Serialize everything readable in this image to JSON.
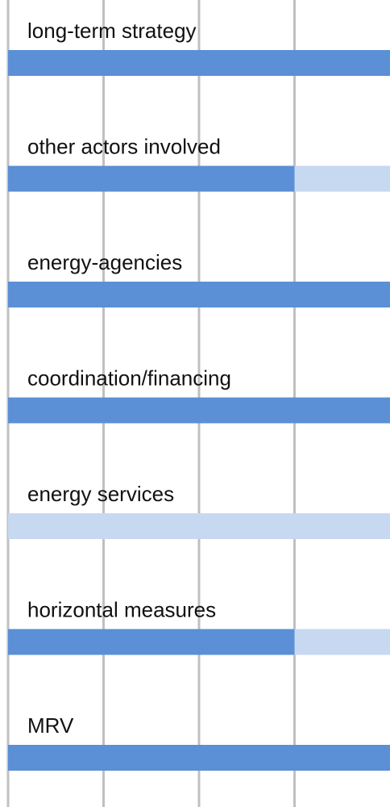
{
  "chart_data": {
    "type": "stacked_barh",
    "categories": [
      "long-term strategy",
      "other actors involved",
      "energy-agencies",
      "coordination/financing",
      "energy services",
      "horizontal measures",
      "MRV"
    ],
    "series": [
      {
        "color": "#5b8fd6",
        "values": [
          4,
          3,
          4,
          4,
          0,
          3,
          4
        ]
      },
      {
        "color": "#c6d9f1",
        "values": [
          0,
          1,
          0,
          0,
          4,
          1,
          0
        ]
      }
    ],
    "xlim": [
      0,
      4
    ],
    "xticks": [
      0,
      1,
      2,
      3
    ],
    "grid": true
  }
}
